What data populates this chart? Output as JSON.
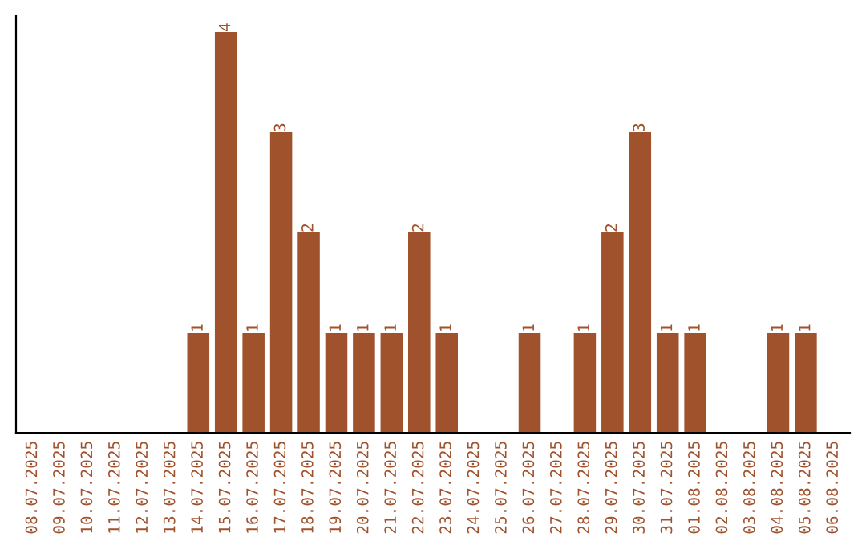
{
  "chart_data": {
    "type": "bar",
    "categories": [
      "08.07.2025",
      "09.07.2025",
      "10.07.2025",
      "11.07.2025",
      "12.07.2025",
      "13.07.2025",
      "14.07.2025",
      "15.07.2025",
      "16.07.2025",
      "17.07.2025",
      "18.07.2025",
      "19.07.2025",
      "20.07.2025",
      "21.07.2025",
      "22.07.2025",
      "23.07.2025",
      "24.07.2025",
      "25.07.2025",
      "26.07.2025",
      "27.07.2025",
      "28.07.2025",
      "29.07.2025",
      "30.07.2025",
      "31.07.2025",
      "01.08.2025",
      "02.08.2025",
      "03.08.2025",
      "04.08.2025",
      "05.08.2025",
      "06.08.2025"
    ],
    "values": [
      0,
      0,
      0,
      0,
      0,
      0,
      1,
      4,
      1,
      3,
      2,
      1,
      1,
      1,
      2,
      1,
      0,
      0,
      1,
      0,
      1,
      2,
      3,
      1,
      1,
      0,
      0,
      1,
      1,
      0
    ],
    "value_labels": [
      null,
      null,
      null,
      null,
      null,
      null,
      "1",
      "4",
      "1",
      "3",
      "2",
      "1",
      "1",
      "1",
      "2",
      "1",
      null,
      null,
      "1",
      null,
      "1",
      "2",
      "3",
      "1",
      "1",
      null,
      null,
      "1",
      "1",
      null
    ],
    "color": "#a0522d",
    "tick_labels": "x",
    "grid": false,
    "legend": false
  }
}
